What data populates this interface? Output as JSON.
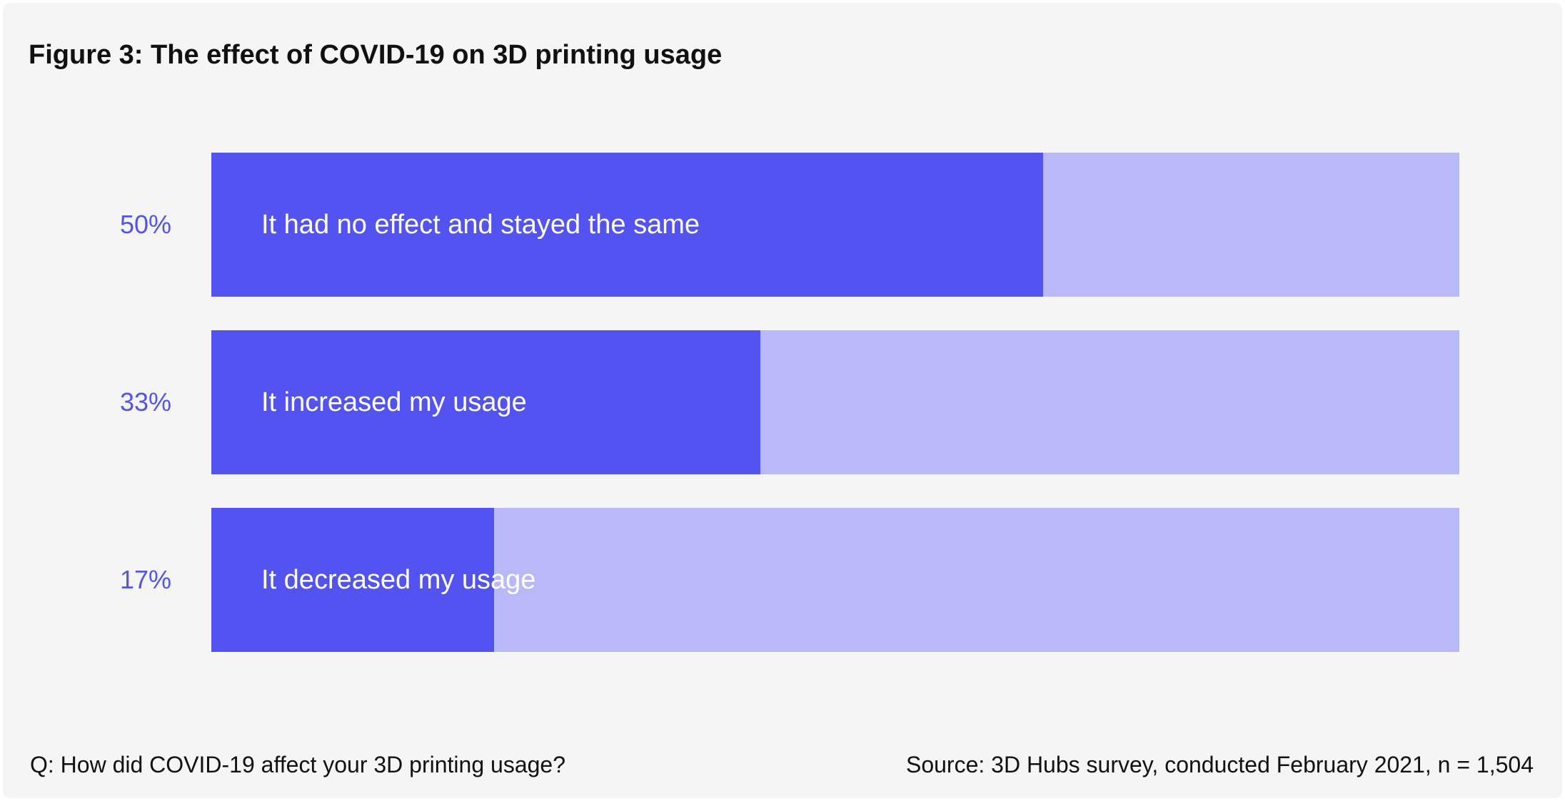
{
  "chart_data": {
    "type": "bar",
    "orientation": "horizontal",
    "title": "Figure 3: The effect of COVID-19 on 3D printing usage",
    "categories": [
      "It had no effect and stayed the same",
      "It increased my usage",
      "It decreased my usage"
    ],
    "values": [
      50,
      33,
      17
    ],
    "value_labels": [
      "50%",
      "33%",
      "17%"
    ],
    "unit": "%",
    "xlim": [
      0,
      75
    ],
    "grid": false,
    "legend": "none",
    "colors": {
      "bar": "#5353f2",
      "track": "#b9b9fa",
      "value_text": "#5353f2",
      "background": "#f5f5f5"
    }
  },
  "footer": {
    "question": "Q: How did COVID-19 affect your 3D printing usage?",
    "source": "Source: 3D Hubs survey, conducted February 2021, n = 1,504"
  }
}
